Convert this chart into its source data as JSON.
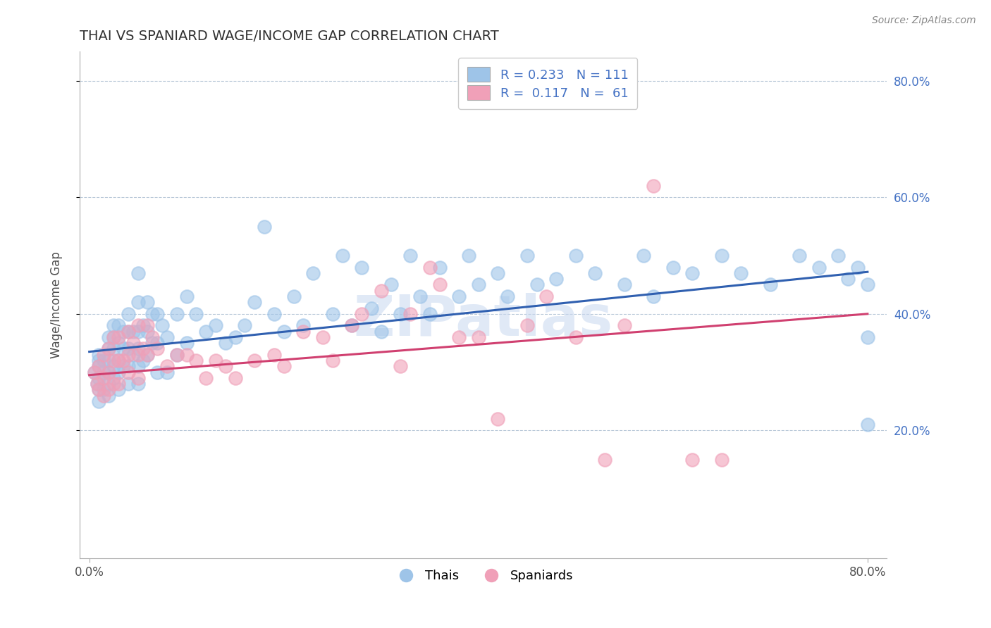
{
  "title": "THAI VS SPANIARD WAGE/INCOME GAP CORRELATION CHART",
  "source_text": "Source: ZipAtlas.com",
  "ylabel": "Wage/Income Gap",
  "xlim": [
    -0.01,
    0.82
  ],
  "ylim": [
    -0.02,
    0.85
  ],
  "xticks": [
    0.0,
    0.8
  ],
  "xticklabels": [
    "0.0%",
    "80.0%"
  ],
  "yticks": [
    0.2,
    0.4,
    0.6,
    0.8
  ],
  "yticklabels": [
    "20.0%",
    "40.0%",
    "60.0%",
    "80.0%"
  ],
  "thai_color": "#9ec4e8",
  "spaniard_color": "#f0a0b8",
  "thai_line_color": "#3060b0",
  "spaniard_line_color": "#d04070",
  "thai_R": 0.233,
  "thai_N": 111,
  "spaniard_R": 0.117,
  "spaniard_N": 61,
  "watermark": "ZIPatlas",
  "watermark_color": "#c8d8f0",
  "background_color": "#ffffff",
  "grid_color": "#b8c8d8",
  "title_color": "#303030",
  "legend_text_color": "#4472c4",
  "right_tick_color": "#4472c4",
  "thai_scatter_x": [
    0.005,
    0.008,
    0.01,
    0.01,
    0.01,
    0.01,
    0.01,
    0.01,
    0.015,
    0.015,
    0.015,
    0.02,
    0.02,
    0.02,
    0.02,
    0.02,
    0.02,
    0.025,
    0.025,
    0.025,
    0.025,
    0.025,
    0.03,
    0.03,
    0.03,
    0.03,
    0.03,
    0.035,
    0.035,
    0.035,
    0.04,
    0.04,
    0.04,
    0.04,
    0.04,
    0.045,
    0.045,
    0.05,
    0.05,
    0.05,
    0.05,
    0.05,
    0.05,
    0.055,
    0.055,
    0.06,
    0.06,
    0.06,
    0.065,
    0.065,
    0.07,
    0.07,
    0.07,
    0.075,
    0.08,
    0.08,
    0.09,
    0.09,
    0.1,
    0.1,
    0.11,
    0.12,
    0.13,
    0.14,
    0.15,
    0.16,
    0.17,
    0.18,
    0.19,
    0.2,
    0.21,
    0.22,
    0.23,
    0.25,
    0.26,
    0.27,
    0.28,
    0.29,
    0.3,
    0.31,
    0.32,
    0.33,
    0.34,
    0.35,
    0.36,
    0.38,
    0.39,
    0.4,
    0.42,
    0.43,
    0.45,
    0.46,
    0.48,
    0.5,
    0.52,
    0.55,
    0.57,
    0.58,
    0.6,
    0.62,
    0.65,
    0.67,
    0.7,
    0.73,
    0.75,
    0.77,
    0.78,
    0.79,
    0.8,
    0.8,
    0.8
  ],
  "thai_scatter_y": [
    0.3,
    0.28,
    0.25,
    0.27,
    0.29,
    0.31,
    0.32,
    0.33,
    0.27,
    0.3,
    0.32,
    0.26,
    0.28,
    0.3,
    0.32,
    0.34,
    0.36,
    0.29,
    0.31,
    0.34,
    0.36,
    0.38,
    0.27,
    0.3,
    0.32,
    0.35,
    0.38,
    0.31,
    0.34,
    0.37,
    0.28,
    0.31,
    0.34,
    0.37,
    0.4,
    0.33,
    0.37,
    0.28,
    0.31,
    0.34,
    0.37,
    0.42,
    0.47,
    0.32,
    0.38,
    0.33,
    0.37,
    0.42,
    0.35,
    0.4,
    0.3,
    0.35,
    0.4,
    0.38,
    0.3,
    0.36,
    0.33,
    0.4,
    0.35,
    0.43,
    0.4,
    0.37,
    0.38,
    0.35,
    0.36,
    0.38,
    0.42,
    0.55,
    0.4,
    0.37,
    0.43,
    0.38,
    0.47,
    0.4,
    0.5,
    0.38,
    0.48,
    0.41,
    0.37,
    0.45,
    0.4,
    0.5,
    0.43,
    0.4,
    0.48,
    0.43,
    0.5,
    0.45,
    0.47,
    0.43,
    0.5,
    0.45,
    0.46,
    0.5,
    0.47,
    0.45,
    0.5,
    0.43,
    0.48,
    0.47,
    0.5,
    0.47,
    0.45,
    0.5,
    0.48,
    0.5,
    0.46,
    0.48,
    0.21,
    0.36,
    0.45
  ],
  "spaniard_scatter_x": [
    0.005,
    0.008,
    0.01,
    0.01,
    0.015,
    0.015,
    0.015,
    0.02,
    0.02,
    0.02,
    0.025,
    0.025,
    0.025,
    0.03,
    0.03,
    0.03,
    0.035,
    0.04,
    0.04,
    0.04,
    0.045,
    0.05,
    0.05,
    0.05,
    0.055,
    0.06,
    0.06,
    0.065,
    0.07,
    0.08,
    0.09,
    0.1,
    0.11,
    0.12,
    0.13,
    0.14,
    0.15,
    0.17,
    0.19,
    0.2,
    0.22,
    0.24,
    0.25,
    0.27,
    0.28,
    0.3,
    0.32,
    0.33,
    0.35,
    0.36,
    0.38,
    0.4,
    0.42,
    0.45,
    0.47,
    0.5,
    0.53,
    0.55,
    0.58,
    0.62,
    0.65
  ],
  "spaniard_scatter_y": [
    0.3,
    0.28,
    0.27,
    0.31,
    0.26,
    0.29,
    0.33,
    0.27,
    0.3,
    0.34,
    0.28,
    0.32,
    0.36,
    0.28,
    0.32,
    0.36,
    0.32,
    0.3,
    0.33,
    0.37,
    0.35,
    0.29,
    0.33,
    0.38,
    0.34,
    0.33,
    0.38,
    0.36,
    0.34,
    0.31,
    0.33,
    0.33,
    0.32,
    0.29,
    0.32,
    0.31,
    0.29,
    0.32,
    0.33,
    0.31,
    0.37,
    0.36,
    0.32,
    0.38,
    0.4,
    0.44,
    0.31,
    0.4,
    0.48,
    0.45,
    0.36,
    0.36,
    0.22,
    0.38,
    0.43,
    0.36,
    0.15,
    0.38,
    0.62,
    0.15,
    0.15
  ]
}
